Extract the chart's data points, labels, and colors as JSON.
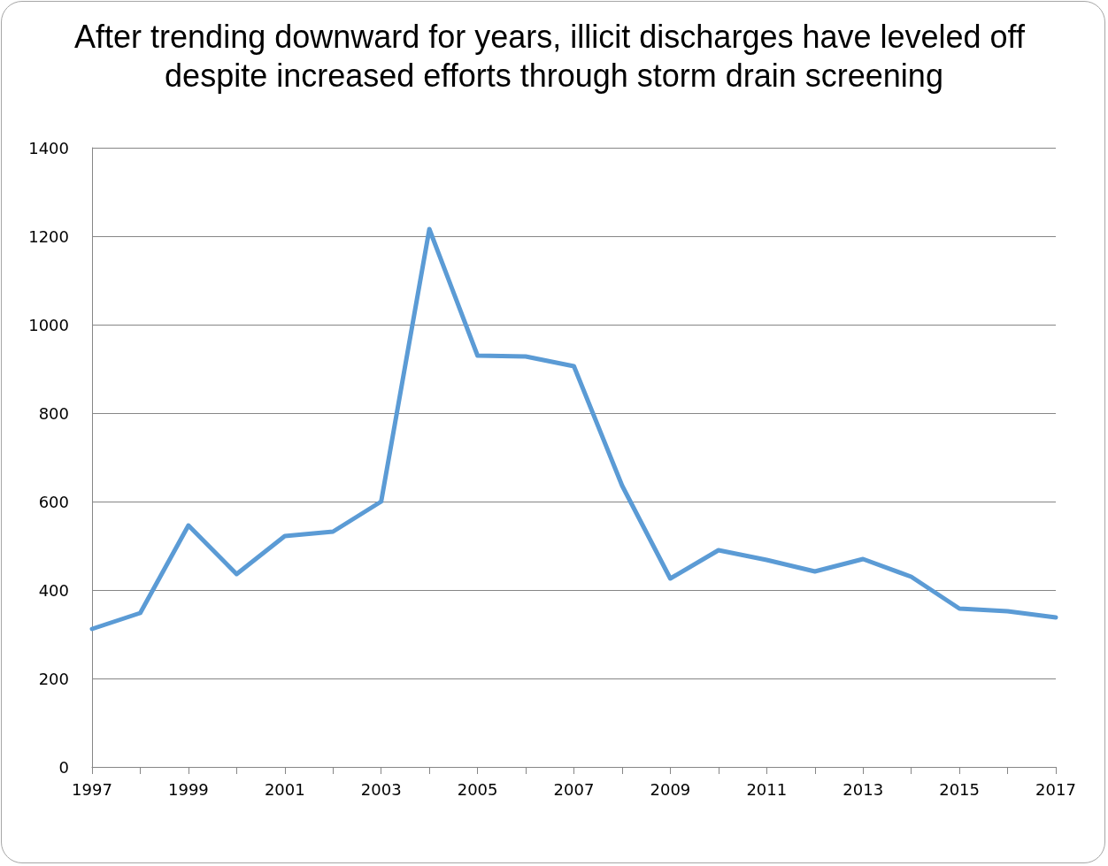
{
  "chart_data": {
    "type": "line",
    "title": "After trending downward for years, illicit discharges have leveled off despite increased efforts through storm drain screening",
    "x": [
      1997,
      1998,
      1999,
      2000,
      2001,
      2002,
      2003,
      2004,
      2005,
      2006,
      2007,
      2008,
      2009,
      2010,
      2011,
      2012,
      2013,
      2014,
      2015,
      2016,
      2017
    ],
    "series": [
      {
        "color": "#5b9bd5",
        "values": [
          312,
          348,
          546,
          436,
          522,
          532,
          600,
          1216,
          930,
          928,
          906,
          636,
          426,
          490,
          468,
          442,
          470,
          430,
          358,
          352,
          338
        ]
      }
    ],
    "xlim": [
      1997,
      2017
    ],
    "xticks": [
      1997,
      {
        "value": 1998,
        "label": null
      },
      1999,
      {
        "value": 2000,
        "label": null
      },
      2001,
      {
        "value": 2002,
        "label": null
      },
      2003,
      {
        "value": 2004,
        "label": null
      },
      2005,
      {
        "value": 2006,
        "label": null
      },
      2007,
      {
        "value": 2008,
        "label": null
      },
      2009,
      {
        "value": 2010,
        "label": null
      },
      2011,
      {
        "value": 2012,
        "label": null
      },
      2013,
      {
        "value": 2014,
        "label": null
      },
      2015,
      {
        "value": 2016,
        "label": null
      },
      2017
    ],
    "ylim": [
      0,
      1400
    ],
    "yticks": [
      0,
      200,
      400,
      600,
      800,
      1000,
      1200,
      1400
    ],
    "grid": "y",
    "marker": "none",
    "line_style": "solid"
  }
}
